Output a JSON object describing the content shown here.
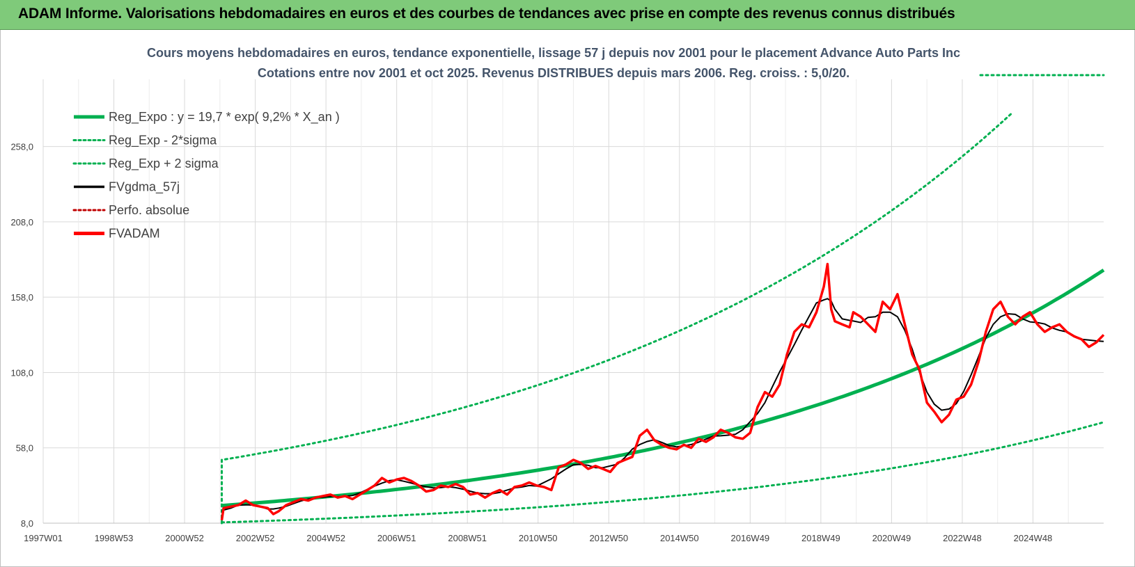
{
  "header": {
    "title": "ADAM Informe. Valorisations hebdomadaires en euros et des courbes de tendances avec prise en compte des revenus connus distribués"
  },
  "colors": {
    "banner": "#7fca7a",
    "trend": "#00b050",
    "price": "#ff0000",
    "smooth": "#000000",
    "perf": "#c00000",
    "grid": "#d9d9d9"
  },
  "chart_data": {
    "type": "line",
    "title_lines": [
      "Cours moyens hebdomadaires en euros, tendance exponentielle, lissage 57 j depuis nov 2001 pour le placement Advance Auto Parts Inc",
      "Cotations entre nov 2001 et oct 2025. Revenus DISTRIBUES depuis mars 2006. Reg. croiss. : 5,0/20."
    ],
    "x_ticks": [
      "1997W01",
      "1998W53",
      "2000W52",
      "2002W52",
      "2004W52",
      "2006W51",
      "2008W51",
      "2010W50",
      "2012W50",
      "2014W50",
      "2016W49",
      "2018W49",
      "2020W49",
      "2022W48",
      "2024W48"
    ],
    "y_ticks": [
      "8,0",
      "58,0",
      "108,0",
      "158,0",
      "208,0",
      "258,0"
    ],
    "ylim": [
      8,
      298
    ],
    "xlim": [
      1997.0,
      2025.8
    ],
    "grid": true,
    "legend_position": "top-left",
    "legend": [
      {
        "label": "Reg_Expo : y = 19,7 * exp( 9,2% *  X_an )",
        "style": "solid-thick",
        "color": "#00b050"
      },
      {
        "label": "Reg_Exp - 2*sigma",
        "style": "dotted",
        "color": "#00b050"
      },
      {
        "label": "Reg_Exp + 2 sigma",
        "style": "dotted",
        "color": "#00b050"
      },
      {
        "label": "FVgdma_57j",
        "style": "solid",
        "color": "#000000"
      },
      {
        "label": "Perfo. absolue",
        "style": "dotted",
        "color": "#c00000"
      },
      {
        "label": "FVADAM",
        "style": "solid-thick",
        "color": "#ff0000"
      }
    ],
    "regression": {
      "start": 2001.85,
      "end": 2025.8,
      "values": [
        [
          2001.85,
          19.7
        ],
        [
          2025.8,
          176
        ]
      ]
    },
    "band_lower": {
      "start": 2001.85,
      "end": 2025.8,
      "values": [
        [
          2001.85,
          8.5
        ],
        [
          2025.8,
          75
        ]
      ]
    },
    "band_upper": {
      "start": 2001.85,
      "end": 2023.3,
      "values": [
        [
          2001.85,
          50
        ],
        [
          2023.3,
          280
        ]
      ]
    },
    "series": [
      {
        "name": "FVADAM",
        "points": [
          [
            2001.85,
            10
          ],
          [
            2001.9,
            18
          ],
          [
            2002.1,
            19
          ],
          [
            2002.3,
            20
          ],
          [
            2002.5,
            23
          ],
          [
            2002.7,
            20
          ],
          [
            2002.9,
            19
          ],
          [
            2003.1,
            18
          ],
          [
            2003.25,
            14
          ],
          [
            2003.4,
            16
          ],
          [
            2003.6,
            20
          ],
          [
            2003.8,
            22
          ],
          [
            2004.0,
            24
          ],
          [
            2004.2,
            23
          ],
          [
            2004.4,
            25
          ],
          [
            2004.6,
            26
          ],
          [
            2004.8,
            27
          ],
          [
            2005.0,
            25
          ],
          [
            2005.2,
            26
          ],
          [
            2005.4,
            24
          ],
          [
            2005.6,
            27
          ],
          [
            2005.8,
            30
          ],
          [
            2006.0,
            33
          ],
          [
            2006.2,
            38
          ],
          [
            2006.4,
            35
          ],
          [
            2006.6,
            37
          ],
          [
            2006.8,
            38
          ],
          [
            2007.0,
            36
          ],
          [
            2007.2,
            33
          ],
          [
            2007.4,
            29
          ],
          [
            2007.6,
            30
          ],
          [
            2007.8,
            33
          ],
          [
            2008.0,
            32
          ],
          [
            2008.2,
            34
          ],
          [
            2008.4,
            32
          ],
          [
            2008.6,
            27
          ],
          [
            2008.8,
            28
          ],
          [
            2009.0,
            25
          ],
          [
            2009.2,
            28
          ],
          [
            2009.4,
            30
          ],
          [
            2009.6,
            27
          ],
          [
            2009.8,
            32
          ],
          [
            2010.0,
            33
          ],
          [
            2010.2,
            35
          ],
          [
            2010.4,
            33
          ],
          [
            2010.6,
            32
          ],
          [
            2010.8,
            30
          ],
          [
            2011.0,
            45
          ],
          [
            2011.2,
            47
          ],
          [
            2011.4,
            50
          ],
          [
            2011.6,
            48
          ],
          [
            2011.8,
            44
          ],
          [
            2012.0,
            46
          ],
          [
            2012.2,
            44
          ],
          [
            2012.4,
            42
          ],
          [
            2012.6,
            48
          ],
          [
            2012.8,
            50
          ],
          [
            2013.0,
            52
          ],
          [
            2013.2,
            66
          ],
          [
            2013.4,
            70
          ],
          [
            2013.6,
            63
          ],
          [
            2013.8,
            60
          ],
          [
            2014.0,
            58
          ],
          [
            2014.2,
            57
          ],
          [
            2014.4,
            60
          ],
          [
            2014.6,
            58
          ],
          [
            2014.8,
            64
          ],
          [
            2015.0,
            62
          ],
          [
            2015.2,
            65
          ],
          [
            2015.4,
            70
          ],
          [
            2015.6,
            68
          ],
          [
            2015.8,
            65
          ],
          [
            2016.0,
            64
          ],
          [
            2016.2,
            68
          ],
          [
            2016.4,
            85
          ],
          [
            2016.6,
            95
          ],
          [
            2016.8,
            92
          ],
          [
            2017.0,
            100
          ],
          [
            2017.2,
            120
          ],
          [
            2017.4,
            135
          ],
          [
            2017.6,
            140
          ],
          [
            2017.8,
            138
          ],
          [
            2018.0,
            148
          ],
          [
            2018.2,
            165
          ],
          [
            2018.3,
            180
          ],
          [
            2018.4,
            150
          ],
          [
            2018.5,
            142
          ],
          [
            2018.7,
            140
          ],
          [
            2018.9,
            138
          ],
          [
            2019.0,
            148
          ],
          [
            2019.2,
            145
          ],
          [
            2019.4,
            140
          ],
          [
            2019.6,
            135
          ],
          [
            2019.8,
            155
          ],
          [
            2020.0,
            150
          ],
          [
            2020.2,
            160
          ],
          [
            2020.4,
            140
          ],
          [
            2020.6,
            120
          ],
          [
            2020.8,
            110
          ],
          [
            2021.0,
            88
          ],
          [
            2021.2,
            82
          ],
          [
            2021.4,
            75
          ],
          [
            2021.6,
            80
          ],
          [
            2021.8,
            90
          ],
          [
            2022.0,
            92
          ],
          [
            2022.2,
            100
          ],
          [
            2022.4,
            115
          ],
          [
            2022.6,
            135
          ],
          [
            2022.8,
            150
          ],
          [
            2023.0,
            155
          ],
          [
            2023.2,
            145
          ],
          [
            2023.4,
            140
          ],
          [
            2023.6,
            145
          ],
          [
            2023.8,
            148
          ],
          [
            2024.0,
            140
          ],
          [
            2024.2,
            135
          ],
          [
            2024.4,
            138
          ],
          [
            2024.6,
            140
          ],
          [
            2024.8,
            135
          ],
          [
            2025.0,
            132
          ],
          [
            2025.2,
            130
          ],
          [
            2025.4,
            125
          ],
          [
            2025.6,
            128
          ],
          [
            2025.8,
            133
          ]
        ]
      }
    ]
  }
}
